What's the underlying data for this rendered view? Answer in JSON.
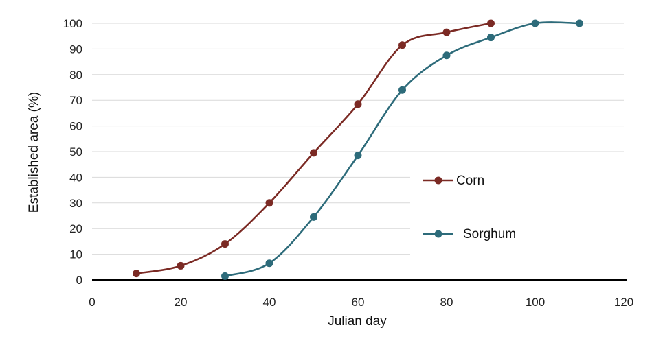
{
  "chart_data": {
    "type": "line",
    "title": "",
    "xlabel": "Julian day",
    "ylabel": "Established area (%)",
    "xlim": [
      0,
      120
    ],
    "ylim": [
      0,
      100
    ],
    "xticks": [
      0,
      20,
      40,
      60,
      80,
      100,
      120
    ],
    "yticks": [
      0,
      10,
      20,
      30,
      40,
      50,
      60,
      70,
      80,
      90,
      100
    ],
    "grid": true,
    "legend_position": "right, inside plot",
    "series": [
      {
        "name": "Corn",
        "color": "#7b2a24",
        "x": [
          10,
          20,
          30,
          40,
          50,
          60,
          70,
          80,
          90
        ],
        "y": [
          2.5,
          5.5,
          14,
          30,
          49.5,
          68.5,
          91.5,
          96.5,
          100
        ]
      },
      {
        "name": "Sorghum",
        "color": "#2d6b7a",
        "x": [
          30,
          40,
          50,
          60,
          70,
          80,
          90,
          100,
          110
        ],
        "y": [
          1.5,
          6.5,
          24.5,
          48.5,
          74,
          87.5,
          94.5,
          100,
          100
        ]
      }
    ]
  }
}
